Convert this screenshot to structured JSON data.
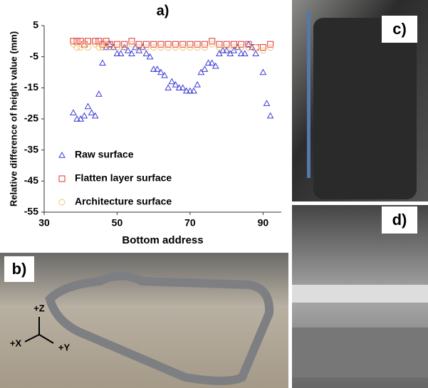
{
  "chart_data": {
    "type": "scatter",
    "title": "a)",
    "xlabel": "Bottom address",
    "ylabel": "Relative difference of height value (mm)",
    "xlim": [
      30,
      95
    ],
    "xticks": [
      30,
      50,
      70,
      90
    ],
    "ylim": [
      -55,
      5
    ],
    "yticks": [
      5,
      -5,
      -15,
      -25,
      -35,
      -45,
      -55
    ],
    "legend": "lower left",
    "series": [
      {
        "name": "Raw surface",
        "color": "#3b3bd6",
        "marker": "triangle",
        "x": [
          38,
          39,
          40,
          41,
          42,
          43,
          44,
          45,
          46,
          47,
          48,
          49,
          50,
          51,
          52,
          53,
          54,
          55,
          56,
          57,
          58,
          59,
          60,
          61,
          62,
          63,
          64,
          65,
          66,
          67,
          68,
          69,
          70,
          71,
          72,
          73,
          74,
          75,
          76,
          77,
          78,
          79,
          80,
          81,
          82,
          83,
          84,
          85,
          86,
          87,
          88,
          90,
          91,
          92
        ],
        "values": [
          -23,
          -25,
          -25,
          -24,
          -21,
          -23,
          -24,
          -17,
          -7,
          -2,
          -1,
          -2,
          -4,
          -4,
          -2,
          -3,
          -4,
          -2,
          -3,
          -2,
          -4,
          -5,
          -9,
          -9,
          -10,
          -11,
          -15,
          -13,
          -14,
          -15,
          -15,
          -16,
          -16,
          -16,
          -14,
          -10,
          -9,
          -7,
          -7,
          -8,
          -4,
          -3,
          -3,
          -4,
          -3,
          -2,
          -4,
          -4,
          -1,
          -2,
          -4,
          -10,
          -20,
          -24
        ]
      },
      {
        "name": "Flatten layer surface",
        "color": "#e03030",
        "marker": "square",
        "x": [
          38,
          39,
          40,
          41,
          42,
          44,
          45,
          46,
          47,
          48,
          50,
          52,
          54,
          56,
          58,
          60,
          62,
          64,
          66,
          68,
          70,
          72,
          74,
          76,
          78,
          80,
          82,
          84,
          86,
          88,
          90,
          92
        ],
        "values": [
          0,
          0,
          0,
          -1,
          0,
          0,
          0,
          -1,
          0,
          -1,
          -1,
          -1,
          0,
          -1,
          -1,
          -1,
          -1,
          -1,
          -1,
          -1,
          -1,
          -1,
          -1,
          0,
          -1,
          -1,
          -1,
          -1,
          -1,
          -2,
          -2,
          -1
        ]
      },
      {
        "name": "Architecture surface",
        "color": "#f2c27a",
        "marker": "circle",
        "x": [
          38,
          39,
          40,
          41,
          42,
          44,
          45,
          46,
          47,
          48,
          50,
          52,
          54,
          56,
          58,
          60,
          62,
          64,
          66,
          68,
          70,
          72,
          74,
          76,
          78,
          80,
          82,
          84,
          86,
          88,
          90,
          92
        ],
        "values": [
          -1,
          -2,
          -2,
          -1,
          -2,
          -1,
          -2,
          -2,
          -1,
          -2,
          -2,
          -2,
          -1,
          -2,
          -2,
          -2,
          -2,
          -2,
          -2,
          -2,
          -2,
          -2,
          -2,
          -1,
          -2,
          -2,
          -2,
          -2,
          -2,
          -2,
          -3,
          -2
        ]
      }
    ]
  },
  "panels": {
    "b": {
      "label": "b)",
      "axes": [
        "+Z",
        "+X",
        "+Y"
      ]
    },
    "c": {
      "label": "c)"
    },
    "d": {
      "label": "d)"
    }
  }
}
